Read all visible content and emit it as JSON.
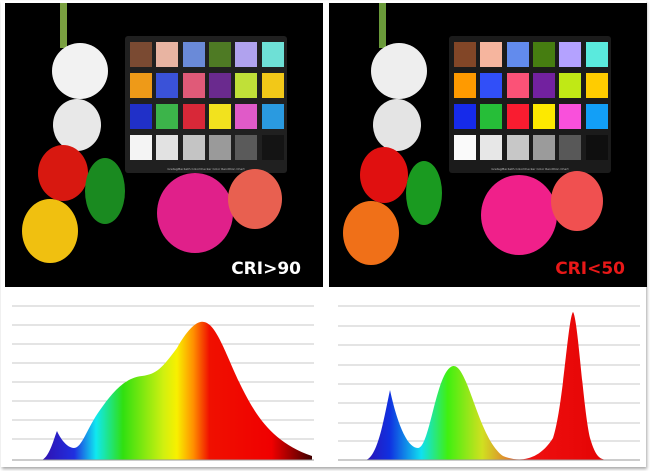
{
  "left": {
    "label": "CRI>90",
    "label_color": "#ffffff"
  },
  "right": {
    "label": "CRI<50",
    "label_color": "#e81818"
  },
  "checker": {
    "caption": "GretagMacbeth ColorChecker Color Rendition Chart",
    "colors": [
      "#7a4a32",
      "#e8b4a2",
      "#6a8ad8",
      "#4e7a24",
      "#b0a2ee",
      "#6ee0d6",
      "#ee9a18",
      "#3a52d8",
      "#e05a78",
      "#6a2a8e",
      "#c0e038",
      "#f2c818",
      "#2030c8",
      "#3cb44a",
      "#d82838",
      "#f2e21e",
      "#e05ac8",
      "#2a9ae0",
      "#f4f4f4",
      "#e2e2e2",
      "#c4c4c4",
      "#9a9a9a",
      "#5a5a5a",
      "#141414"
    ]
  }
}
